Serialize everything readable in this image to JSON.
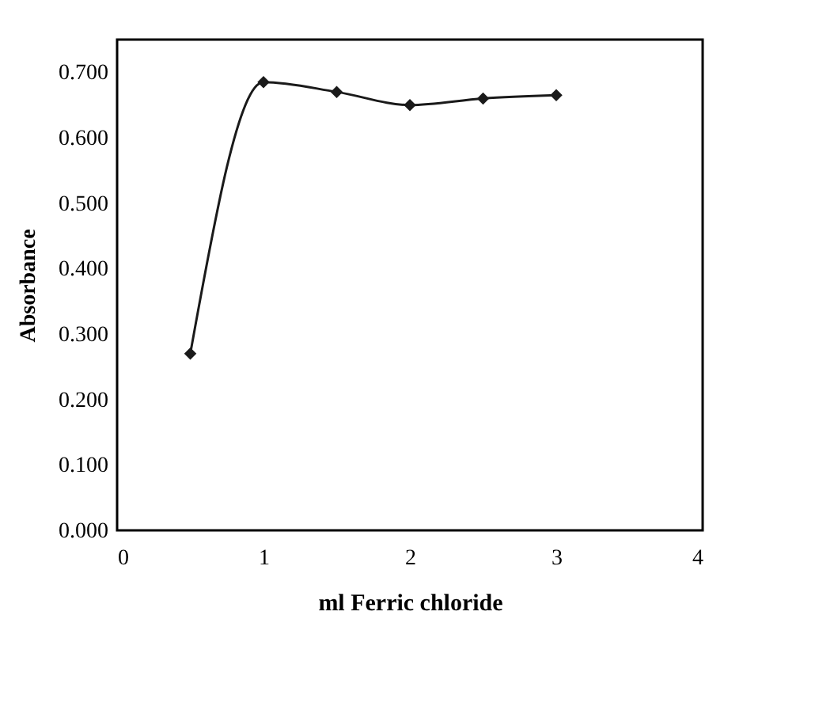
{
  "chart_data": {
    "type": "line",
    "xlabel": "ml Ferric chloride",
    "ylabel": "Absorbance",
    "x": [
      0.5,
      1,
      1.5,
      2,
      2.5,
      3
    ],
    "series": [
      {
        "color": "#1a1a1a",
        "values": [
          0.27,
          0.685,
          0.67,
          0.65,
          0.66,
          0.665
        ]
      }
    ],
    "xlim": [
      0,
      4
    ],
    "xticks": [
      0,
      1,
      2,
      3,
      4
    ],
    "ylim": [
      0,
      0.75
    ],
    "yticks": [
      {
        "value": 0,
        "label": "0.000"
      },
      {
        "value": 0.1,
        "label": "0.100"
      },
      {
        "value": 0.2,
        "label": "0.200"
      },
      {
        "value": 0.3,
        "label": "0.300"
      },
      {
        "value": 0.4,
        "label": "0.400"
      },
      {
        "value": 0.5,
        "label": "0.500"
      },
      {
        "value": 0.6,
        "label": "0.600"
      },
      {
        "value": 0.7,
        "label": "0.700"
      }
    ],
    "grid": false,
    "marker": "diamond",
    "line_style": "solid"
  }
}
